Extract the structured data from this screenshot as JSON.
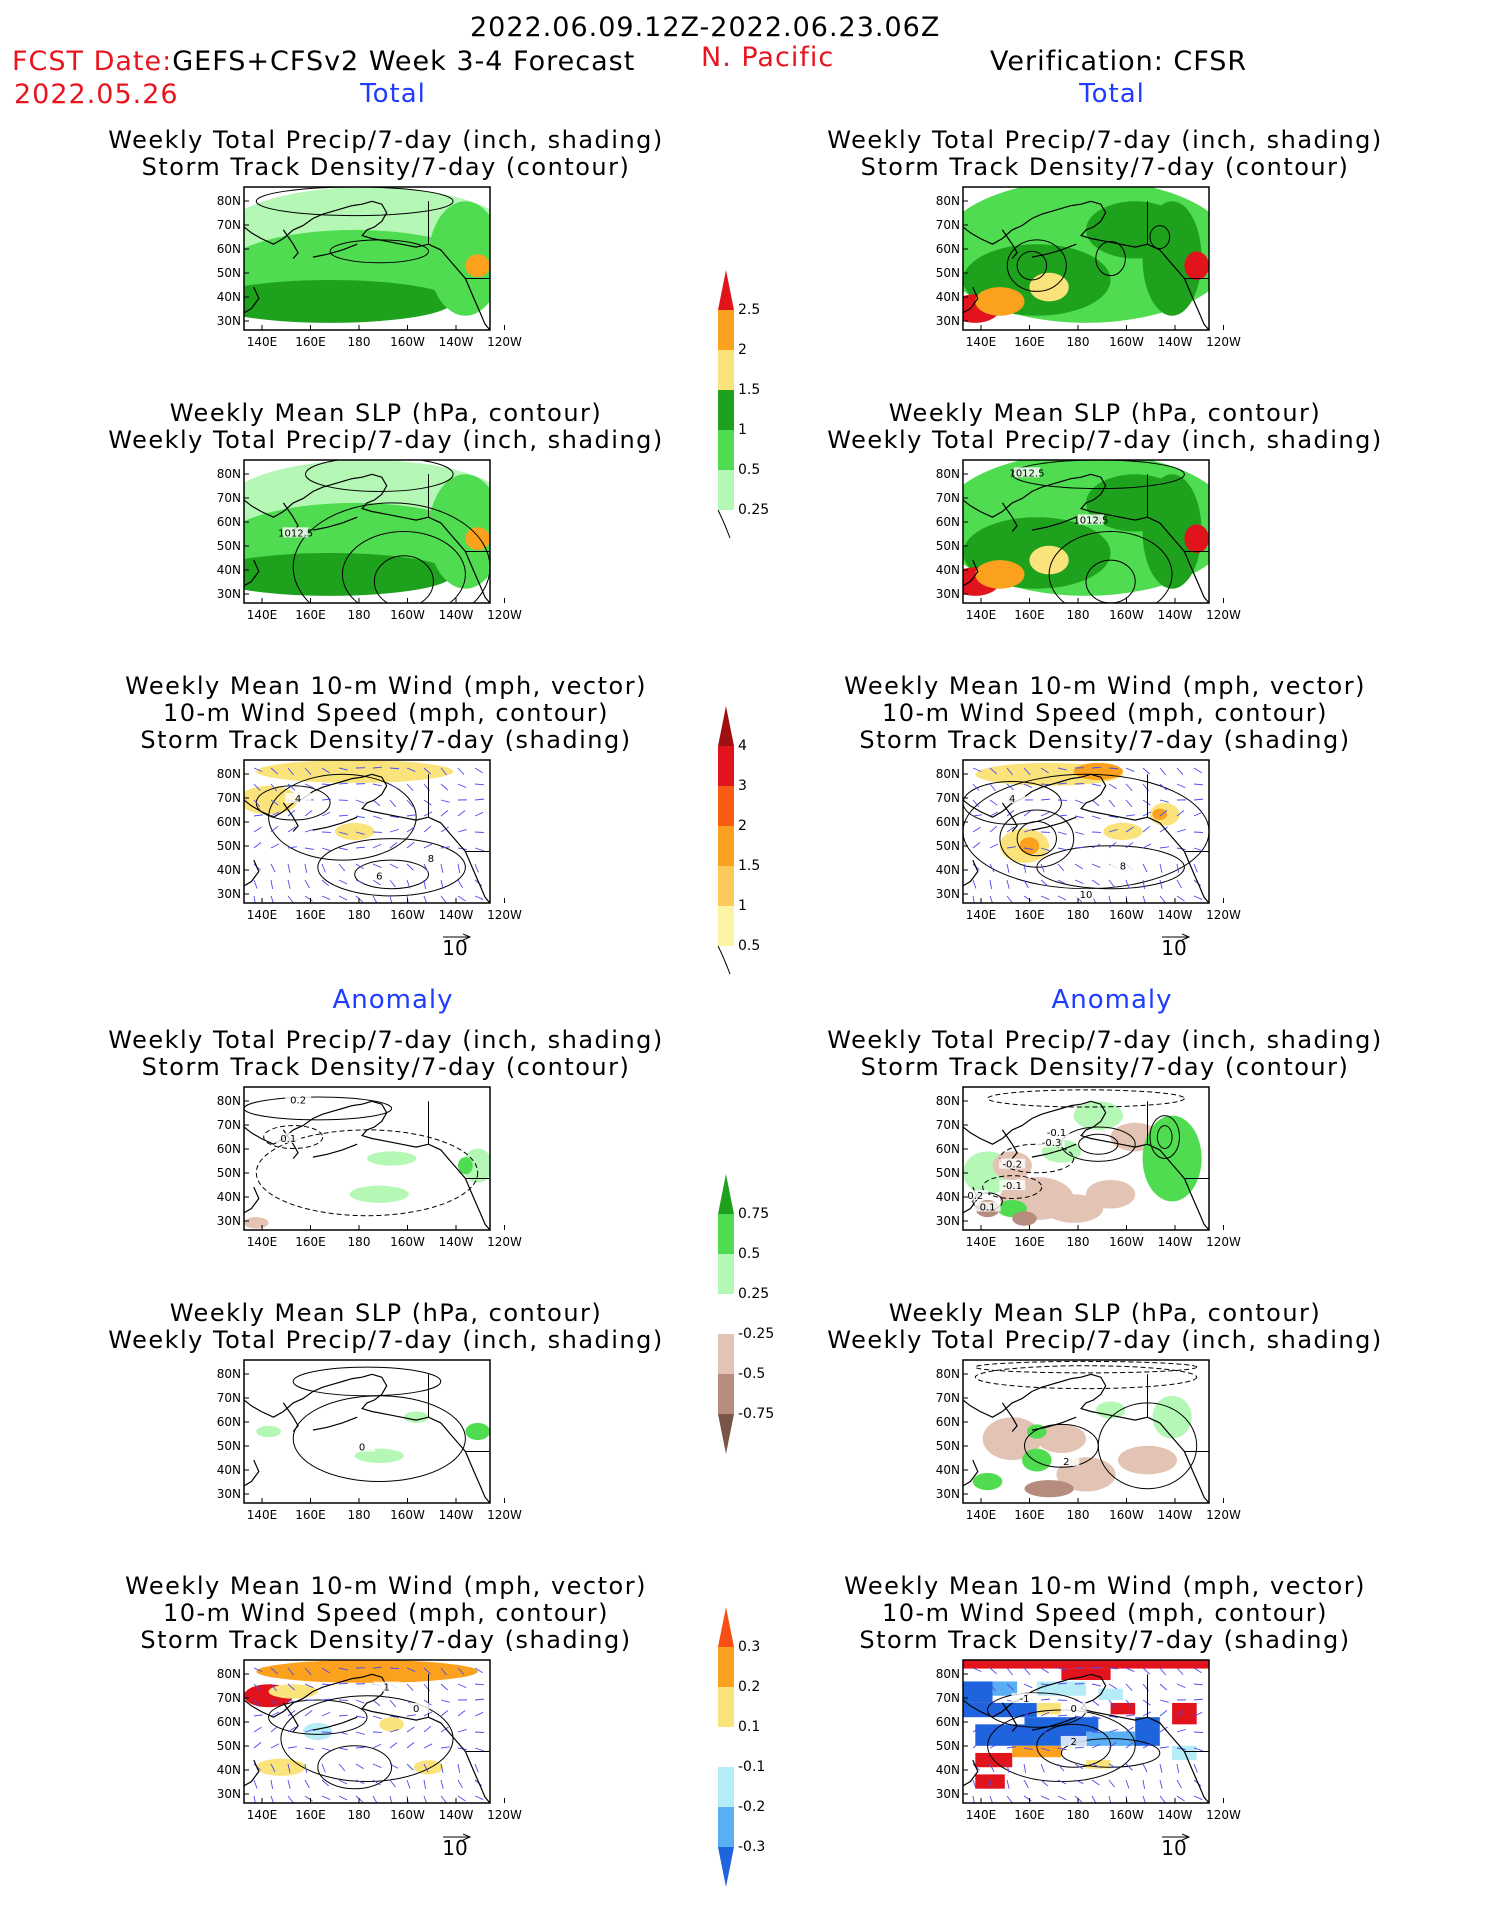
{
  "header": {
    "date_range": "2022.06.09.12Z-2022.06.23.06Z",
    "fcst_prefix": "FCST Date:",
    "fcst_model": "GEFS+CFSv2 Week 3-4 Forecast",
    "fcst_date": "2022.05.26",
    "region": "N. Pacific",
    "verification": "Verification: CFSR"
  },
  "section_labels": {
    "total": "Total",
    "anomaly": "Anomaly"
  },
  "panel_titles": {
    "precip_track": [
      "Weekly Total Precip/7-day (inch, shading)",
      "Storm Track Density/7-day (contour)"
    ],
    "slp_precip": [
      "Weekly Mean SLP (hPa, contour)",
      "Weekly Total Precip/7-day (inch, shading)"
    ],
    "wind_track": [
      "Weekly Mean 10-m Wind (mph, vector)",
      "10-m Wind Speed (mph, contour)",
      "Storm Track Density/7-day (shading)"
    ]
  },
  "axes": {
    "lat_labels": [
      "80N",
      "70N",
      "60N",
      "50N",
      "40N",
      "30N"
    ],
    "lon_labels": [
      "140E",
      "160E",
      "180",
      "160W",
      "140W",
      "120W"
    ]
  },
  "vector_ref_label": "10",
  "map_annotations": {
    "fc_slp_contour": "1012.5",
    "ob_slp_contour_a": "1012.5",
    "ob_slp_contour_b": "1012.5",
    "fc_anom_track_labels": [
      "0.2",
      "0.1"
    ],
    "ob_anom_track_labels": [
      "-0.1",
      "-0.3",
      "-0.2",
      "-0.1",
      "0.2",
      "0.1"
    ],
    "fc_anom_slp_label": "0",
    "ob_anom_slp_label": "2",
    "fc_wind_speed_labels": [
      "4",
      "6",
      "8"
    ],
    "ob_wind_speed_labels": [
      "4",
      "8",
      "10"
    ],
    "fc_anom_wind_labels": [
      "1",
      "0"
    ],
    "ob_anom_wind_labels": [
      "-1",
      "0",
      "2"
    ]
  },
  "colorbars": [
    {
      "id": "precip_total",
      "labels": [
        "2.5",
        "2",
        "1.5",
        "1",
        "0.5",
        "0.25"
      ],
      "colors": [
        "#e1141e",
        "#fba11e",
        "#fbe37b",
        "#1ea21e",
        "#50dc50",
        "#b5f7b5"
      ],
      "top_arrow": true,
      "bottom_arrow": false
    },
    {
      "id": "track_total",
      "labels": [
        "4",
        "3",
        "2",
        "1.5",
        "1",
        "0.5"
      ],
      "colors": [
        "#a01010",
        "#e1141e",
        "#f85c14",
        "#fba11e",
        "#fbca5a",
        "#fcf5a6"
      ],
      "top_arrow": true,
      "bottom_arrow": false
    },
    {
      "id": "precip_anom",
      "labels": [
        "0.75",
        "0.5",
        "0.25",
        "-0.25",
        "-0.5",
        "-0.75"
      ],
      "colors": [
        "#1ea21e",
        "#50dc50",
        "#b5f7b5",
        "#ffffff",
        "#e3c3b4",
        "#b58c7d",
        "#7a5648"
      ],
      "top_arrow": true,
      "bottom_arrow": true
    },
    {
      "id": "track_anom",
      "labels": [
        "0.3",
        "0.2",
        "0.1",
        "-0.1",
        "-0.2",
        "-0.3"
      ],
      "colors": [
        "#f85014",
        "#fba11e",
        "#fbe37b",
        "#ffffff",
        "#b5ecf8",
        "#5aaff4",
        "#1e64dc"
      ],
      "top_arrow": true,
      "bottom_arrow": true
    }
  ],
  "palette": {
    "land_border": "#000000",
    "green_light": "#b5f7b5",
    "green_mid": "#50dc50",
    "green_dark": "#1ea21e",
    "yellow": "#fbe37b",
    "orange": "#fba11e",
    "red": "#e1141e",
    "brown_light": "#e3c3b4",
    "brown_mid": "#b58c7d",
    "blue_light": "#b5ecf8",
    "blue_mid": "#5aaff4",
    "blue_dark": "#1e64dc",
    "vector_blue": "#4a4af0"
  }
}
